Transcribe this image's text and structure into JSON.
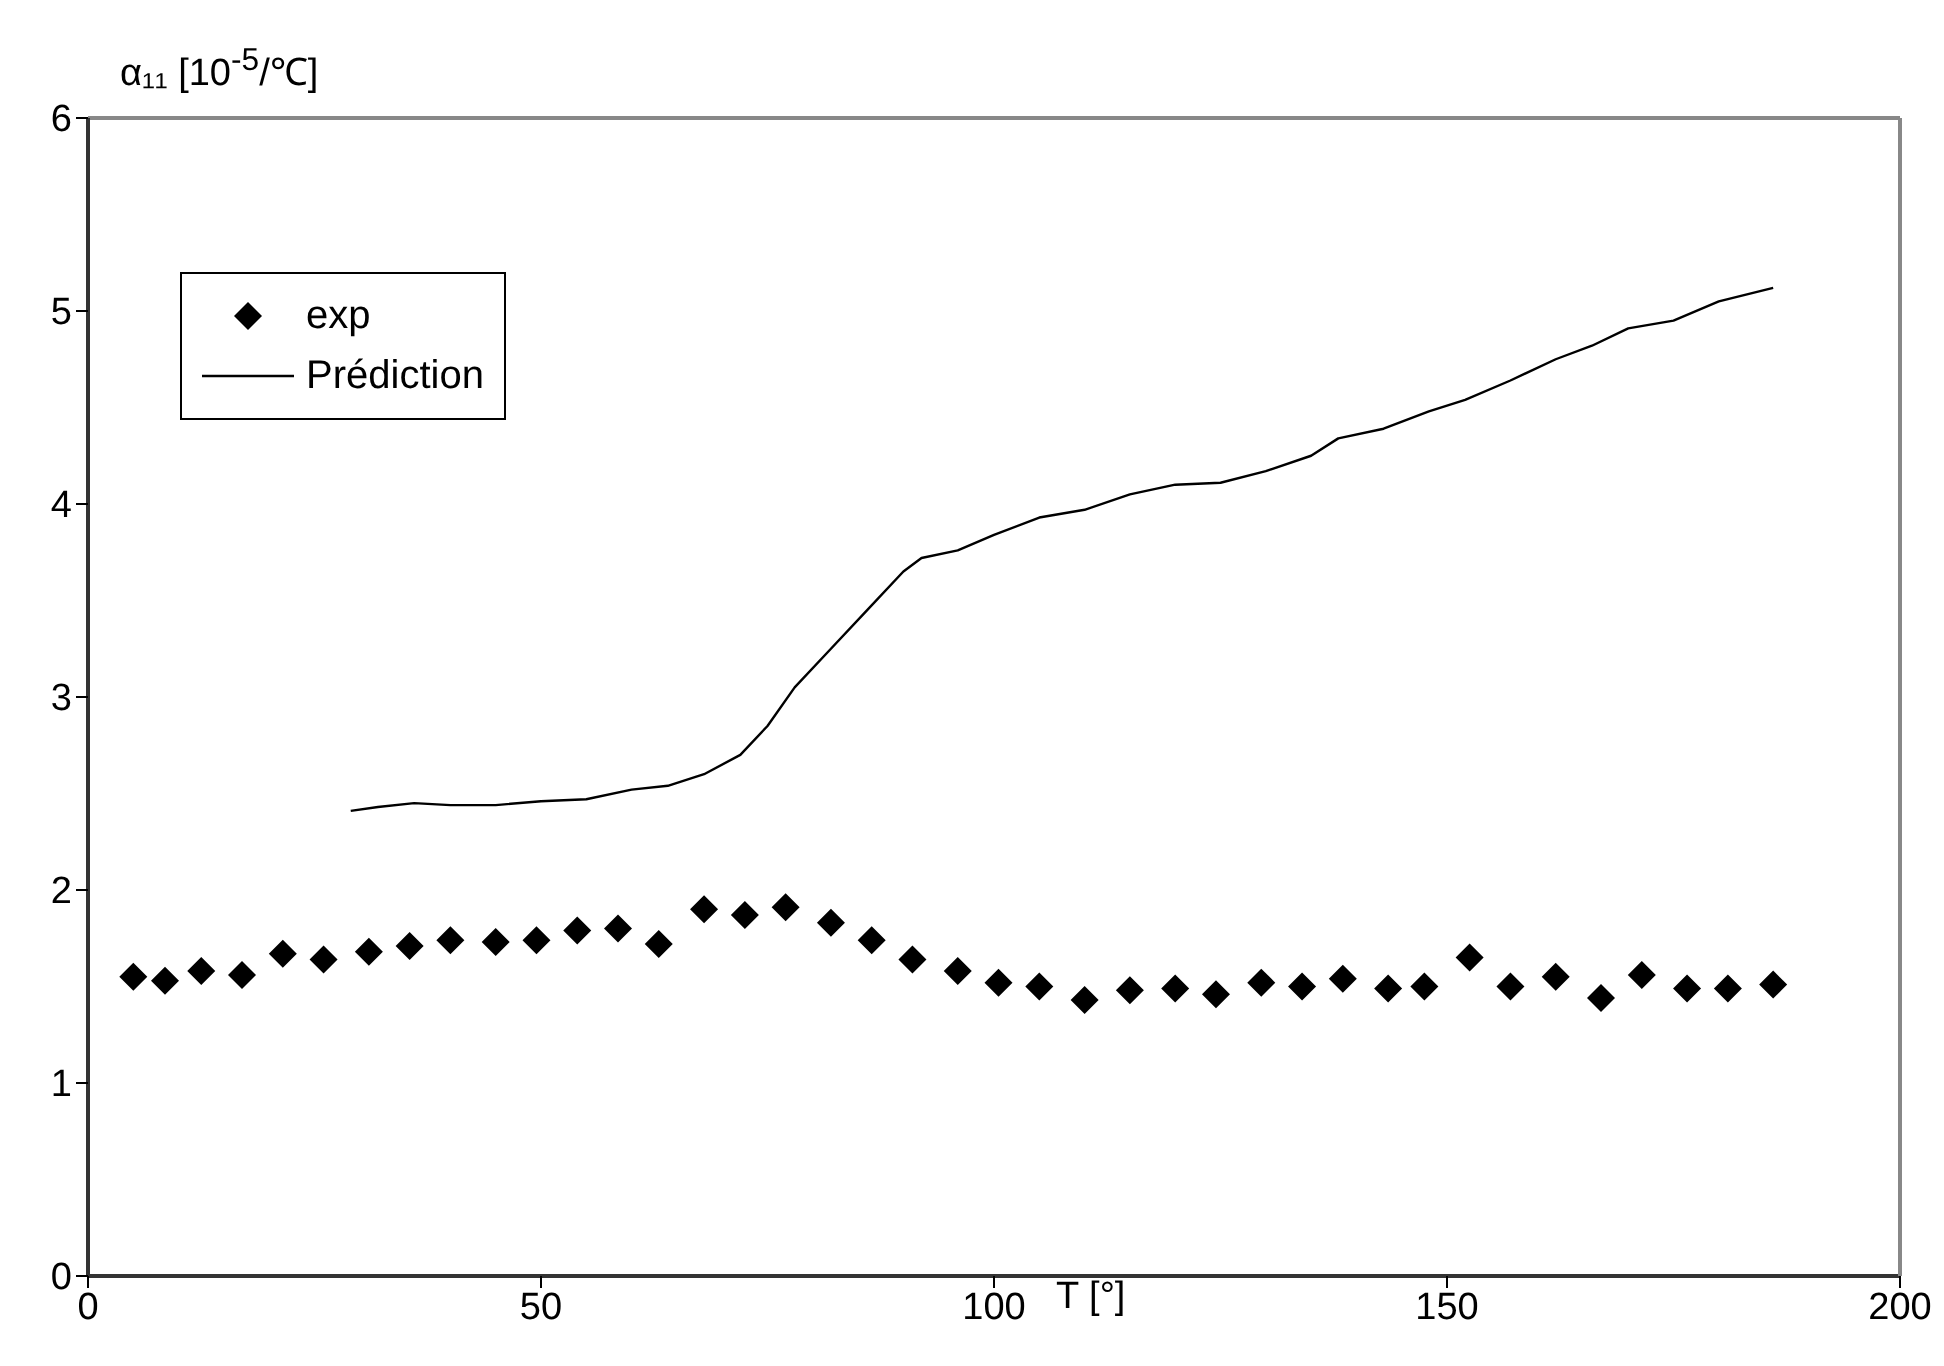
{
  "chart_data": {
    "type": "scatter",
    "xlabel": "T [°]",
    "ylabel": "α₁₁ [10$^{-5}$/℃]",
    "xlim": [
      0,
      200
    ],
    "xticks": [
      0,
      50,
      100,
      150,
      200
    ],
    "ylim": [
      0,
      6
    ],
    "yticks": [
      0,
      1,
      2,
      3,
      4,
      5,
      6
    ],
    "legend": "top left",
    "series": [
      {
        "name": "exp",
        "marker": "diamond",
        "color": "#000000",
        "x": [
          5,
          8.5,
          12.5,
          17,
          21.5,
          26,
          31,
          35.5,
          40,
          45,
          49.5,
          54,
          58.5,
          63,
          68,
          72.5,
          77,
          82,
          86.5,
          91,
          96,
          100.5,
          105,
          110,
          115,
          120,
          124.5,
          129.5,
          134,
          138.5,
          143.5,
          147.5,
          152.5,
          157,
          162,
          167,
          171.5,
          176.5,
          181,
          186
        ],
        "values": [
          1.55,
          1.53,
          1.58,
          1.56,
          1.67,
          1.64,
          1.68,
          1.71,
          1.74,
          1.73,
          1.74,
          1.79,
          1.8,
          1.72,
          1.9,
          1.87,
          1.91,
          1.83,
          1.74,
          1.64,
          1.58,
          1.52,
          1.5,
          1.43,
          1.48,
          1.49,
          1.46,
          1.52,
          1.5,
          1.54,
          1.49,
          1.5,
          1.65,
          1.5,
          1.55,
          1.44,
          1.56,
          1.49,
          1.49,
          1.51
        ]
      },
      {
        "name": "Prédiction",
        "type": "line",
        "marker": "none",
        "color": "#000000",
        "x": [
          29,
          32,
          36,
          40,
          45,
          50,
          55,
          60,
          64,
          68,
          72,
          75,
          78,
          82,
          86,
          90,
          92,
          96,
          100,
          105,
          110,
          115,
          120,
          125,
          130,
          135,
          138,
          143,
          148,
          152,
          157,
          162,
          166,
          170,
          175,
          180,
          186
        ],
        "values": [
          2.41,
          2.43,
          2.45,
          2.44,
          2.44,
          2.46,
          2.47,
          2.52,
          2.54,
          2.6,
          2.7,
          2.85,
          3.05,
          3.25,
          3.45,
          3.65,
          3.72,
          3.76,
          3.84,
          3.93,
          3.97,
          4.05,
          4.1,
          4.11,
          4.17,
          4.25,
          4.34,
          4.39,
          4.48,
          4.54,
          4.64,
          4.75,
          4.82,
          4.91,
          4.95,
          5.05,
          5.12
        ]
      }
    ]
  }
}
